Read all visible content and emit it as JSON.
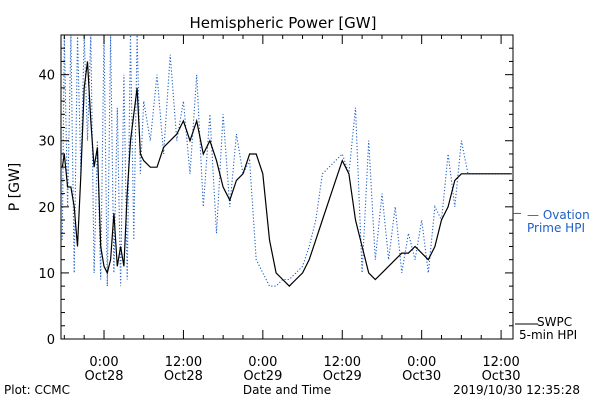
{
  "chart_data": {
    "type": "line",
    "title": "Hemispheric Power [GW]",
    "xlabel": "Date and Time",
    "ylabel": "P [GW]",
    "ylim": [
      0,
      46
    ],
    "xlim_hours": [
      -6.5,
      61.8
    ],
    "yticks": [
      0,
      10,
      20,
      30,
      40
    ],
    "xticks": [
      {
        "hour": 0,
        "line1": "0:00",
        "line2": "Oct28"
      },
      {
        "hour": 12,
        "line1": "12:00",
        "line2": "Oct28"
      },
      {
        "hour": 24,
        "line1": "0:00",
        "line2": "Oct29"
      },
      {
        "hour": 36,
        "line1": "12:00",
        "line2": "Oct29"
      },
      {
        "hour": 48,
        "line1": "0:00",
        "line2": "Oct30"
      },
      {
        "hour": 60,
        "line1": "12:00",
        "line2": "Oct30"
      }
    ],
    "grid": false,
    "legend_position": "right",
    "series": [
      {
        "name": "SWPC 5-min HPI",
        "color": "#000000",
        "style": "solid",
        "x": [
          -6.3,
          -6.0,
          -5.5,
          -5.0,
          -4.5,
          -4.0,
          -3.5,
          -3.0,
          -2.5,
          -2.0,
          -1.5,
          -1.0,
          -0.5,
          0.0,
          0.5,
          1.0,
          1.5,
          2.0,
          2.5,
          3.0,
          3.5,
          4.0,
          4.5,
          5.0,
          5.5,
          6.0,
          7.0,
          8.0,
          9.0,
          10.0,
          11.0,
          12.0,
          13.0,
          14.0,
          15.0,
          16.0,
          17.0,
          18.0,
          19.0,
          20.0,
          21.0,
          22.0,
          23.0,
          24.0,
          25.0,
          26.0,
          27.0,
          28.0,
          29.0,
          30.0,
          31.0,
          32.0,
          33.0,
          34.0,
          35.0,
          36.0,
          37.0,
          38.0,
          39.0,
          40.0,
          41.0,
          42.0,
          43.0,
          44.0,
          45.0,
          46.0,
          47.0,
          48.0,
          49.0,
          50.0,
          51.0,
          52.0,
          53.0,
          54.0,
          55.0,
          56.0,
          57.0,
          58.0,
          59.0,
          60.0,
          61.0,
          61.6
        ],
        "y": [
          26,
          28,
          23,
          23,
          20,
          14,
          25,
          38,
          42,
          33,
          26,
          29,
          14,
          11,
          10,
          12,
          19,
          11,
          14,
          11,
          22,
          30,
          34,
          38,
          28,
          27,
          26,
          26,
          29,
          30,
          31,
          33,
          30,
          33,
          28,
          30,
          27,
          23,
          21,
          24,
          25,
          28,
          28,
          25,
          15,
          10,
          9,
          8,
          9,
          10,
          12,
          15,
          18,
          21,
          24,
          27,
          25,
          18,
          14,
          10,
          9,
          10,
          11,
          12,
          13,
          13,
          14,
          13,
          12,
          14,
          18,
          20,
          24,
          25,
          25,
          25,
          25,
          25,
          25,
          25,
          25,
          25
        ]
      },
      {
        "name": "Ovation Prime HPI",
        "color": "#1e5fc8",
        "style": "dotted",
        "x": [
          -6.3,
          -6.0,
          -5.5,
          -5.0,
          -4.5,
          -4.0,
          -3.5,
          -3.0,
          -2.5,
          -2.0,
          -1.5,
          -1.0,
          -0.5,
          0.0,
          0.5,
          1.0,
          1.5,
          2.0,
          2.5,
          3.0,
          3.5,
          4.0,
          4.5,
          5.0,
          5.5,
          6.0,
          7.0,
          8.0,
          9.0,
          10.0,
          11.0,
          12.0,
          13.0,
          14.0,
          15.0,
          16.0,
          17.0,
          18.0,
          19.0,
          20.0,
          21.0,
          22.0,
          23.0,
          24.0,
          25.0,
          26.0,
          27.0,
          28.0,
          29.0,
          30.0,
          31.0,
          32.0,
          33.0,
          34.0,
          35.0,
          36.0,
          37.0,
          38.0,
          39.0,
          40.0,
          41.0,
          42.0,
          43.0,
          44.0,
          45.0,
          46.0,
          47.0,
          48.0,
          49.0,
          50.0,
          51.0,
          52.0,
          53.0,
          54.0,
          55.0,
          56.0,
          57.0,
          58.0,
          59.0,
          60.0,
          61.0,
          61.6
        ],
        "y": [
          15,
          46,
          20,
          46,
          10,
          46,
          25,
          46,
          30,
          46,
          10,
          30,
          9,
          46,
          8,
          46,
          10,
          35,
          8,
          40,
          9,
          46,
          15,
          46,
          25,
          36,
          30,
          40,
          28,
          43,
          30,
          36,
          25,
          40,
          20,
          34,
          16,
          34,
          20,
          31,
          25,
          27,
          12,
          10,
          8,
          8,
          9,
          9,
          10,
          11,
          14,
          18,
          25,
          26,
          27,
          28,
          25,
          35,
          10,
          30,
          12,
          22,
          12,
          20,
          10,
          16,
          12,
          18,
          10,
          20,
          18,
          28,
          20,
          30,
          25,
          25,
          25,
          25,
          25,
          25,
          25,
          25
        ]
      }
    ]
  },
  "legend": {
    "ovation_line1": "— Ovation",
    "ovation_line2": "Prime HPI",
    "swpc_line1": "SWPC",
    "swpc_line2": "5-min HPI"
  },
  "footer": {
    "plot_credit": "Plot: CCMC",
    "timestamp": "2019/10/30 12:35:28"
  }
}
